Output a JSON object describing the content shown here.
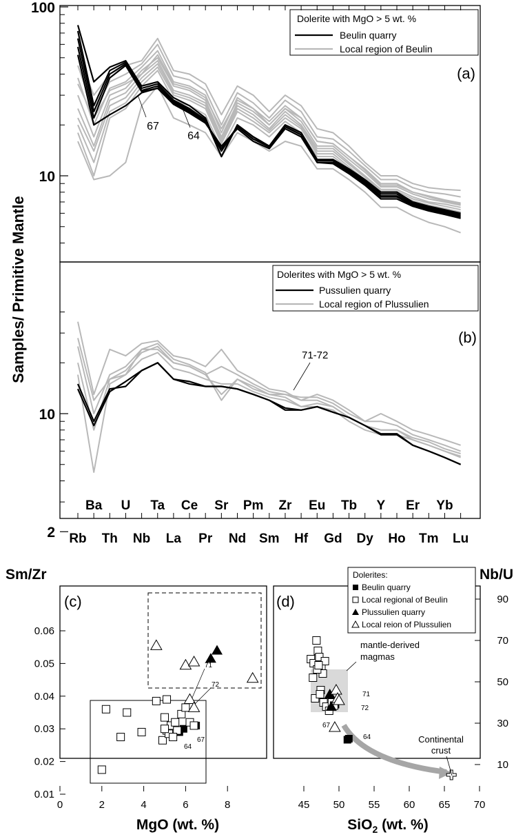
{
  "colors": {
    "black": "#000000",
    "gray": "#b8b8b8",
    "arrow": "#a6a6a6",
    "shade": "#d9d9d9"
  },
  "chart_data": [
    {
      "type": "line",
      "panel": "(a)",
      "log_y": true,
      "ylabel": "Samples/ Primitive Mantle",
      "y_ticks": [
        "100",
        "10"
      ],
      "elements": [
        "Rb",
        "Ba",
        "Th",
        "U",
        "Nb",
        "Ta",
        "La",
        "Ce",
        "Pr",
        "Sr",
        "Nd",
        "Pm",
        "Sm",
        "Zr",
        "Hf",
        "Eu",
        "Gd",
        "Tb",
        "Dy",
        "Y",
        "Ho",
        "Er",
        "Tm",
        "Yb",
        "Lu"
      ],
      "legend": {
        "title": "Dolerite with MgO > 5 wt. %",
        "items": [
          "Beulin quarry",
          "Local region of Beulin"
        ],
        "position": "top-right"
      },
      "annotations": [
        "67",
        "64"
      ],
      "series": [
        {
          "group": "Local region of Beulin",
          "values": [
            52,
            30,
            40,
            45,
            48,
            65,
            42,
            40,
            35,
            23,
            34,
            30,
            24,
            30,
            26,
            19,
            18,
            15,
            12,
            10,
            10,
            9,
            8.5,
            8.3,
            8.2
          ]
        },
        {
          "group": "Local region of Beulin",
          "values": [
            45,
            24,
            36,
            40,
            46,
            60,
            39,
            37,
            32,
            20,
            31,
            27,
            22,
            28,
            24,
            17,
            16.5,
            14,
            11.5,
            9.5,
            9.5,
            8.5,
            8,
            7.8,
            7.5
          ]
        },
        {
          "group": "Local region of Beulin",
          "values": [
            38,
            20,
            33,
            36,
            44,
            55,
            36,
            34,
            30,
            18,
            29,
            25,
            21,
            26,
            22,
            16,
            15.5,
            13,
            11,
            9,
            9,
            8,
            7.6,
            7.2,
            6.9
          ]
        },
        {
          "group": "Local region of Beulin",
          "values": [
            30,
            17,
            30,
            33,
            42,
            50,
            34,
            32,
            28,
            17,
            27,
            24,
            20,
            25,
            21,
            15,
            15,
            12.5,
            10.5,
            8.6,
            8.6,
            7.8,
            7.3,
            7,
            6.7
          ]
        },
        {
          "group": "Local region of Beulin",
          "values": [
            25,
            15,
            28,
            31,
            40,
            48,
            32,
            30,
            27,
            16.5,
            26,
            23,
            19,
            24,
            20,
            14.5,
            14.5,
            12,
            10,
            8.3,
            8.3,
            7.5,
            7,
            6.8,
            6.5
          ]
        },
        {
          "group": "Local region of Beulin",
          "values": [
            22,
            14,
            26,
            29,
            38,
            46,
            31,
            29,
            26,
            16,
            25,
            22,
            18.5,
            23,
            19.5,
            14,
            14,
            11.7,
            9.8,
            8.1,
            8.1,
            7.3,
            6.9,
            6.6,
            6.3
          ]
        },
        {
          "group": "Local region of Beulin",
          "values": [
            20,
            12,
            24,
            27,
            36,
            44,
            30,
            28,
            25,
            15.5,
            24,
            21,
            18,
            22,
            19,
            13.5,
            13.5,
            11.3,
            9.5,
            7.9,
            7.9,
            7.1,
            6.7,
            6.4,
            6.1
          ]
        },
        {
          "group": "Local region of Beulin",
          "values": [
            18,
            10,
            22,
            25,
            34,
            42,
            28,
            26,
            23,
            14.5,
            22,
            20,
            17,
            21,
            18,
            13,
            13,
            11,
            9.2,
            7.6,
            7.6,
            6.9,
            6.5,
            6.2,
            6
          ]
        },
        {
          "group": "Local region of Beulin",
          "values": [
            16,
            9.5,
            10,
            12,
            26,
            34,
            22,
            20,
            18,
            13,
            18,
            16,
            14,
            16,
            15,
            11,
            11,
            9.5,
            8,
            6.5,
            6.5,
            5.8,
            5.3,
            5,
            4.6
          ]
        },
        {
          "group": "Local region of Beulin",
          "values": [
            35,
            22,
            32,
            35,
            40,
            52,
            35,
            33,
            29,
            19,
            28,
            25,
            20,
            25,
            22,
            16,
            15.5,
            13,
            10.8,
            8.8,
            8.8,
            8,
            7.5,
            7.1,
            6.8
          ]
        },
        {
          "group": "Beulin quarry",
          "values": [
            78,
            36,
            44,
            48,
            34,
            36,
            29,
            26,
            22,
            13,
            20,
            17,
            15,
            20,
            18,
            12.5,
            12.5,
            11,
            9.5,
            8,
            8,
            7,
            6.6,
            6.3,
            6
          ]
        },
        {
          "group": "Beulin quarry",
          "values": [
            72,
            26,
            42,
            47,
            33,
            35,
            28,
            25,
            21.5,
            13,
            20,
            17,
            15,
            20,
            18,
            12.3,
            12.3,
            10.8,
            9.3,
            7.8,
            7.8,
            6.9,
            6.5,
            6.2,
            5.9
          ]
        },
        {
          "group": "Beulin quarry",
          "values": [
            65,
            24,
            40,
            46,
            32,
            34,
            27.5,
            24.5,
            21,
            14,
            19.5,
            16.5,
            15,
            19.5,
            17.5,
            12,
            12,
            10.6,
            9.1,
            7.6,
            7.6,
            6.8,
            6.4,
            6.1,
            5.8
          ]
        },
        {
          "group": "Beulin quarry",
          "values": [
            58,
            22,
            38,
            45,
            31.5,
            33,
            27,
            24,
            21,
            14.5,
            19.5,
            16.5,
            14.8,
            19.5,
            17.5,
            12,
            12,
            10.5,
            9,
            7.5,
            7.5,
            6.7,
            6.3,
            6,
            5.7
          ]
        },
        {
          "group": "Beulin quarry",
          "values": [
            52,
            20,
            23,
            26,
            31,
            33,
            26.5,
            23.5,
            20.5,
            15,
            19,
            16,
            14.5,
            19,
            17,
            12,
            11.8,
            10.3,
            8.8,
            7.3,
            7.3,
            6.6,
            6.2,
            5.9,
            5.6
          ]
        }
      ]
    },
    {
      "type": "line",
      "panel": "(b)",
      "log_y": true,
      "y_ticks": [
        "10",
        "2"
      ],
      "elements": [
        "Rb",
        "Ba",
        "Th",
        "U",
        "Nb",
        "Ta",
        "La",
        "Ce",
        "Pr",
        "Sr",
        "Nd",
        "Pm",
        "Sm",
        "Zr",
        "Hf",
        "Eu",
        "Gd",
        "Tb",
        "Dy",
        "Y",
        "Ho",
        "Er",
        "Tm",
        "Yb",
        "Lu"
      ],
      "legend": {
        "title": "Dolerites with MgO > 5 wt. %",
        "items": [
          "Pussulien quarry",
          "Local region of Plussulien"
        ],
        "position": "top-right"
      },
      "annotations": [
        "71-72"
      ],
      "series": [
        {
          "group": "Local region of Plussulien",
          "values": [
            35,
            13,
            24,
            22,
            26,
            27,
            22,
            21,
            19,
            24,
            18,
            16,
            14,
            13.5,
            12,
            13,
            12,
            10.5,
            9,
            10,
            9,
            8,
            7.5,
            7,
            6.5
          ]
        },
        {
          "group": "Local region of Plussulien",
          "values": [
            28,
            12,
            16,
            17,
            24,
            24,
            20,
            19,
            17,
            19,
            17,
            15,
            13.5,
            13,
            12.5,
            12.5,
            11.5,
            10,
            9,
            9,
            8.5,
            7.5,
            7,
            6.5,
            6
          ]
        },
        {
          "group": "Local region of Plussulien",
          "values": [
            25,
            10,
            17,
            19,
            24,
            26,
            21,
            19.5,
            17.5,
            12,
            16,
            14.5,
            13,
            13,
            12,
            12,
            11,
            9.5,
            8.5,
            8,
            8,
            7.2,
            6.8,
            6.2,
            5.8
          ]
        },
        {
          "group": "Local region of Plussulien",
          "values": [
            20,
            8,
            16,
            18,
            23,
            25,
            20,
            19,
            17,
            13,
            16,
            14,
            13,
            12.5,
            11,
            11,
            10.5,
            9,
            8,
            7.5,
            7.5,
            7,
            6.5,
            6,
            5.6
          ]
        },
        {
          "group": "Local region of Plussulien",
          "values": [
            17,
            4.5,
            15,
            17,
            21,
            23,
            18.5,
            17.5,
            16,
            15,
            15,
            13.5,
            12.5,
            12,
            11,
            11.5,
            11,
            9.5,
            8.5,
            8,
            8,
            7,
            6.5,
            6,
            5.5
          ]
        },
        {
          "group": "Pussulien quarry",
          "values": [
            15,
            9,
            14,
            14.5,
            18,
            20,
            16,
            15,
            14.5,
            14.5,
            14,
            13,
            12,
            10.5,
            10.5,
            11,
            10.2,
            9.5,
            8.5,
            7.5,
            7.5,
            6.5,
            6,
            5.5,
            5
          ]
        },
        {
          "group": "Pussulien quarry",
          "values": [
            14,
            8.5,
            13.5,
            15.5,
            18,
            20,
            16,
            15.5,
            14.5,
            14.5,
            14,
            13,
            12,
            10.8,
            10.5,
            11,
            10.2,
            9.5,
            8.5,
            7.6,
            7.6,
            6.5,
            6,
            5.5,
            5
          ]
        }
      ]
    },
    {
      "type": "scatter",
      "panel": "(c)",
      "xlabel": "MgO (wt. %)",
      "ylabel": "Sm/Zr",
      "xlim": [
        0,
        10
      ],
      "ylim": [
        0.01,
        0.06
      ],
      "x_ticks": [
        "0",
        "2",
        "4",
        "6",
        "8"
      ],
      "y_ticks": [
        "0.01",
        "0.02",
        "0.03",
        "0.04",
        "0.05",
        "0.06"
      ],
      "annotations": [
        "71",
        "72",
        "67",
        "64"
      ],
      "series": [
        {
          "name": "Beulin quarry",
          "marker": "filled-square",
          "points": [
            [
              5.7,
              0.029
            ],
            [
              5.9,
              0.03
            ],
            [
              6.5,
              0.031
            ],
            [
              5.6,
              0.0295
            ]
          ]
        },
        {
          "name": "Local regional of Beulin",
          "marker": "open-square",
          "points": [
            [
              2.0,
              0.0175
            ],
            [
              2.2,
              0.036
            ],
            [
              2.9,
              0.0275
            ],
            [
              3.2,
              0.035
            ],
            [
              3.9,
              0.029
            ],
            [
              4.6,
              0.0385
            ],
            [
              4.9,
              0.0265
            ],
            [
              5.0,
              0.0335
            ],
            [
              5.1,
              0.039
            ],
            [
              5.1,
              0.0295
            ],
            [
              5.2,
              0.0285
            ],
            [
              5.3,
              0.031
            ],
            [
              5.5,
              0.032
            ],
            [
              5.6,
              0.0295
            ],
            [
              5.8,
              0.0345
            ],
            [
              6.0,
              0.0365
            ],
            [
              6.2,
              0.032
            ],
            [
              6.4,
              0.031
            ],
            [
              5.0,
              0.03
            ],
            [
              5.4,
              0.0275
            ]
          ]
        },
        {
          "name": "Plussulien quarry",
          "marker": "filled-triangle",
          "points": [
            [
              7.2,
              0.0515
            ],
            [
              7.5,
              0.054
            ]
          ]
        },
        {
          "name": "Local reion of Plussulien",
          "marker": "open-triangle",
          "points": [
            [
              4.6,
              0.0555
            ],
            [
              6.0,
              0.0495
            ],
            [
              6.4,
              0.0505
            ],
            [
              9.2,
              0.0455
            ],
            [
              6.2,
              0.039
            ],
            [
              6.4,
              0.0365
            ]
          ]
        }
      ]
    },
    {
      "type": "scatter",
      "panel": "(d)",
      "xlabel": "SiO2 (wt. %)",
      "ylabel": "Nb/U",
      "xlim": [
        40,
        70
      ],
      "ylim": [
        0,
        100
      ],
      "x_ticks": [
        "45",
        "50",
        "55",
        "60",
        "65",
        "70"
      ],
      "y_ticks": [
        "10",
        "30",
        "50",
        "70",
        "90"
      ],
      "annotations": [
        "mantle-derived magmas",
        "71",
        "72",
        "67",
        "64",
        "Continental crust"
      ],
      "legend": {
        "title": "Dolerites:",
        "items": [
          "Beulin quarry",
          "Local regional of Beulin",
          "Plussulien quarry",
          "Local reion of Plussulien"
        ],
        "position": "top-right"
      },
      "series": [
        {
          "name": "Beulin quarry",
          "marker": "filled-square",
          "points": [
            [
              49.5,
              39
            ],
            [
              51.2,
              22
            ],
            [
              51.4,
              22.5
            ]
          ]
        },
        {
          "name": "Local regional of Beulin",
          "marker": "open-square",
          "points": [
            [
              46.0,
              61
            ],
            [
              46.4,
              59
            ],
            [
              46.8,
              70
            ],
            [
              47.0,
              65
            ],
            [
              47.2,
              62
            ],
            [
              47.5,
              57
            ],
            [
              47.7,
              54
            ],
            [
              48.0,
              60
            ],
            [
              46.3,
              52
            ],
            [
              46.6,
              42
            ],
            [
              47.4,
              46
            ],
            [
              47.8,
              40
            ],
            [
              48.2,
              38
            ],
            [
              46.9,
              56
            ],
            [
              47.1,
              58
            ],
            [
              49.0,
              40
            ],
            [
              48.6,
              36
            ],
            [
              49.3,
              38.5
            ],
            [
              47.3,
              44
            ]
          ]
        },
        {
          "name": "Plussulien quarry",
          "marker": "filled-triangle",
          "points": [
            [
              48.7,
              44
            ],
            [
              48.9,
              38
            ]
          ]
        },
        {
          "name": "Local reion of Plussulien",
          "marker": "open-triangle",
          "points": [
            [
              49.6,
              46
            ],
            [
              49.8,
              42
            ],
            [
              49.4,
              28
            ],
            [
              50.0,
              41
            ]
          ]
        },
        {
          "name": "Continental crust",
          "marker": "open-cross",
          "points": [
            [
              66.0,
              5
            ]
          ]
        }
      ]
    }
  ]
}
